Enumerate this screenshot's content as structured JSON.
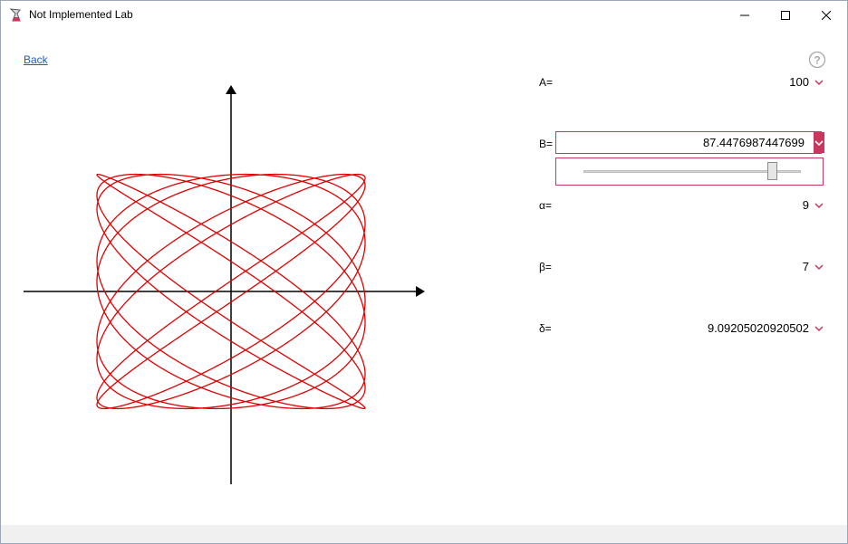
{
  "window": {
    "title": "Not Implemented Lab"
  },
  "nav": {
    "back_label": "Back"
  },
  "params": {
    "A": {
      "label": "A=",
      "value": "100"
    },
    "B": {
      "label": "B=",
      "value": "87.4476987447699",
      "slider_fraction": 0.87
    },
    "alpha": {
      "label": "α=",
      "value": "9"
    },
    "beta": {
      "label": "β=",
      "value": "7"
    },
    "delta": {
      "label": "δ=",
      "value": "9.09205020920502"
    }
  },
  "chart_data": {
    "type": "line",
    "curve": "lissajous",
    "equations": "x = A·sin(α·t + δ), y = B·sin(β·t)",
    "A": 100,
    "B": 87.4476987447699,
    "alpha": 9,
    "beta": 7,
    "delta": 9.09205020920502,
    "xlim": [
      -100,
      100
    ],
    "ylim": [
      -87.4476987447699,
      87.4476987447699
    ],
    "color": "#e00000",
    "axes_color": "#000000"
  },
  "colors": {
    "accent": "#c8385c",
    "link": "#1a5fb4"
  },
  "icons": {
    "app": "lab-flask-icon",
    "help": "question-circle-icon",
    "dropdown": "chevron-down-icon"
  }
}
